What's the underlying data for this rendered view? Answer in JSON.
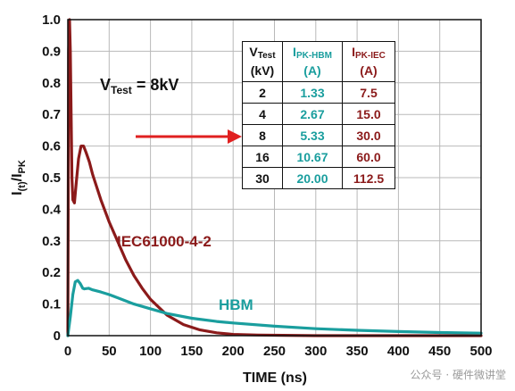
{
  "chart_data": {
    "type": "line",
    "xlabel": "TIME (ns)",
    "ylabel_main": "I",
    "ylabel_sub1": "(t)",
    "ylabel_mid": "/I",
    "ylabel_sub2": "PK",
    "xlim": [
      0,
      500
    ],
    "ylim": [
      0,
      1.0
    ],
    "x_ticks": [
      "0",
      "50",
      "100",
      "150",
      "200",
      "250",
      "300",
      "350",
      "400",
      "450",
      "500"
    ],
    "y_ticks": [
      "0",
      "0.1",
      "0.2",
      "0.3",
      "0.4",
      "0.5",
      "0.6",
      "0.7",
      "0.8",
      "0.9",
      "1.0"
    ],
    "grid": true,
    "series": [
      {
        "name": "IEC61000-4-2",
        "color": "#8b1a1a",
        "x": [
          0,
          1,
          2,
          3,
          5,
          6,
          8,
          10,
          13,
          16,
          19,
          22,
          26,
          30,
          35,
          40,
          50,
          60,
          70,
          80,
          90,
          100,
          120,
          140,
          160,
          180,
          200,
          230,
          260,
          300,
          500
        ],
        "y": [
          0,
          0.9,
          1.0,
          0.9,
          0.5,
          0.43,
          0.42,
          0.48,
          0.56,
          0.6,
          0.6,
          0.58,
          0.55,
          0.51,
          0.47,
          0.43,
          0.36,
          0.3,
          0.24,
          0.19,
          0.15,
          0.115,
          0.065,
          0.035,
          0.018,
          0.009,
          0.004,
          0.002,
          0.001,
          0.0,
          0.0
        ]
      },
      {
        "name": "HBM",
        "color": "#1a9e9e",
        "x": [
          0,
          3,
          6,
          9,
          12,
          15,
          18,
          20,
          25,
          30,
          40,
          50,
          60,
          80,
          100,
          120,
          150,
          180,
          200,
          250,
          300,
          350,
          400,
          450,
          500
        ],
        "y": [
          0,
          0.06,
          0.13,
          0.17,
          0.175,
          0.165,
          0.15,
          0.148,
          0.15,
          0.145,
          0.138,
          0.13,
          0.12,
          0.1,
          0.085,
          0.07,
          0.055,
          0.045,
          0.04,
          0.03,
          0.022,
          0.017,
          0.013,
          0.01,
          0.008
        ]
      }
    ],
    "annotation": {
      "prefix": "V",
      "sub": "Test",
      "suffix": " = 8kV"
    },
    "table": {
      "header": [
        {
          "main": "V",
          "sub": "Test",
          "unit": "(kV)"
        },
        {
          "main": "I",
          "sub": "PK-HBM",
          "unit": "(A)"
        },
        {
          "main": "I",
          "sub": "PK-IEC",
          "unit": "(A)"
        }
      ],
      "rows": [
        [
          "2",
          "1.33",
          "7.5"
        ],
        [
          "4",
          "2.67",
          "15.0"
        ],
        [
          "8",
          "5.33",
          "30.0"
        ],
        [
          "16",
          "10.67",
          "60.0"
        ],
        [
          "30",
          "20.00",
          "112.5"
        ]
      ]
    },
    "arrow_color": "#e02020"
  },
  "watermark": "公众号 · 硬件微讲堂"
}
